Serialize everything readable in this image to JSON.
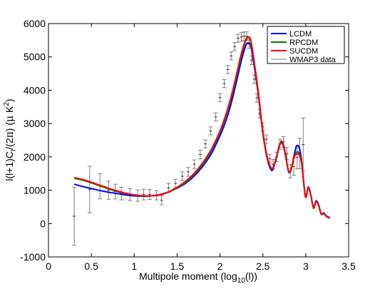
{
  "chart_data": {
    "type": "line",
    "title": "",
    "xlabel": "Multipole moment (log",
    "xlabel_sub": "10",
    "xlabel_end": "(l))",
    "ylabel_parts": {
      "a": "l(l+1)C",
      "sub": "l",
      "b": "/(2",
      "pi": "π",
      "c": ")  (",
      "mu": "μ",
      "d": " K",
      "sup": "2",
      "e": ")"
    },
    "xlim": [
      0,
      3.5
    ],
    "ylim": [
      -1000,
      6000
    ],
    "xticks": [
      0,
      0.5,
      1,
      1.5,
      2,
      2.5,
      3,
      3.5
    ],
    "xtick_labels": [
      "0",
      "0.5",
      "1",
      "1.5",
      "2",
      "2.5",
      "3",
      "3.5"
    ],
    "yticks": [
      -1000,
      0,
      1000,
      2000,
      3000,
      4000,
      5000,
      6000
    ],
    "ytick_labels": [
      "-1000",
      "0",
      "1000",
      "2000",
      "3000",
      "4000",
      "5000",
      "6000"
    ],
    "grid": false,
    "legend_position": "top-right",
    "series": [
      {
        "name": "LCDM",
        "color": "#0000ff",
        "x": [
          0.3,
          0.4,
          0.5,
          0.6,
          0.7,
          0.8,
          0.9,
          1.0,
          1.1,
          1.2,
          1.3,
          1.4,
          1.5,
          1.6,
          1.7,
          1.8,
          1.9,
          2.0,
          2.05,
          2.1,
          2.15,
          2.2,
          2.25,
          2.3,
          2.33,
          2.36,
          2.4,
          2.45,
          2.5,
          2.55,
          2.6,
          2.63,
          2.66,
          2.7,
          2.73,
          2.76,
          2.8,
          2.83,
          2.86,
          2.89,
          2.92,
          2.95,
          2.98,
          3.0,
          3.03,
          3.06,
          3.09,
          3.12,
          3.15,
          3.18,
          3.21,
          3.24,
          3.28
        ],
        "y": [
          1180,
          1110,
          1050,
          990,
          940,
          900,
          860,
          830,
          820,
          830,
          870,
          950,
          1060,
          1210,
          1430,
          1720,
          2100,
          2630,
          2950,
          3330,
          3800,
          4340,
          4900,
          5330,
          5420,
          5310,
          4700,
          3800,
          2700,
          1950,
          1600,
          1720,
          2000,
          2390,
          2390,
          2090,
          1550,
          1630,
          2000,
          2310,
          2300,
          1920,
          1150,
          800,
          1100,
          850,
          480,
          680,
          560,
          300,
          320,
          230,
          180
        ]
      },
      {
        "name": "RPCDM",
        "color": "#008000",
        "x": [
          0.3,
          0.4,
          0.5,
          0.6,
          0.7,
          0.8,
          0.9,
          1.0,
          1.1,
          1.2,
          1.3,
          1.4,
          1.5,
          1.6,
          1.7,
          1.8,
          1.9,
          2.0,
          2.05,
          2.1,
          2.15,
          2.2,
          2.25,
          2.3,
          2.33,
          2.36,
          2.4,
          2.45,
          2.5,
          2.55,
          2.6,
          2.63,
          2.66,
          2.7,
          2.73,
          2.76,
          2.8,
          2.83,
          2.86,
          2.89,
          2.92,
          2.95,
          2.98,
          3.0,
          3.03,
          3.06,
          3.09,
          3.12,
          3.15,
          3.18,
          3.21,
          3.24,
          3.28
        ],
        "y": [
          1360,
          1300,
          1220,
          1130,
          1040,
          960,
          900,
          860,
          830,
          830,
          860,
          940,
          1070,
          1240,
          1480,
          1790,
          2190,
          2740,
          3090,
          3480,
          3950,
          4500,
          5050,
          5480,
          5580,
          5450,
          4800,
          3850,
          2750,
          1990,
          1650,
          1740,
          2010,
          2400,
          2420,
          2120,
          1560,
          1630,
          1960,
          2140,
          2120,
          1860,
          1130,
          790,
          1080,
          840,
          470,
          660,
          540,
          290,
          310,
          220,
          170
        ]
      },
      {
        "name": "SUCDM",
        "color": "#ff0000",
        "x": [
          0.3,
          0.4,
          0.5,
          0.6,
          0.7,
          0.8,
          0.9,
          1.0,
          1.1,
          1.2,
          1.3,
          1.4,
          1.5,
          1.6,
          1.7,
          1.8,
          1.9,
          2.0,
          2.05,
          2.1,
          2.15,
          2.2,
          2.25,
          2.3,
          2.33,
          2.36,
          2.4,
          2.45,
          2.5,
          2.55,
          2.6,
          2.63,
          2.66,
          2.7,
          2.73,
          2.76,
          2.8,
          2.83,
          2.86,
          2.89,
          2.92,
          2.95,
          2.98,
          3.0,
          3.03,
          3.06,
          3.09,
          3.12,
          3.15,
          3.18,
          3.21,
          3.24,
          3.28
        ],
        "y": [
          1380,
          1320,
          1240,
          1150,
          1060,
          980,
          910,
          860,
          830,
          830,
          860,
          950,
          1090,
          1270,
          1510,
          1830,
          2230,
          2780,
          3130,
          3530,
          4010,
          4560,
          5110,
          5520,
          5600,
          5480,
          4840,
          3880,
          2760,
          2000,
          1660,
          1750,
          2020,
          2410,
          2440,
          2140,
          1570,
          1640,
          1970,
          2080,
          2070,
          1840,
          1120,
          780,
          1070,
          830,
          460,
          650,
          530,
          280,
          300,
          210,
          160
        ]
      }
    ],
    "data_series": {
      "name": "WMAP3 data",
      "color": "#808080",
      "x": [
        0.3,
        0.48,
        0.6,
        0.7,
        0.78,
        0.85,
        0.95,
        1.04,
        1.11,
        1.18,
        1.26,
        1.32,
        1.4,
        1.48,
        1.56,
        1.63,
        1.7,
        1.77,
        1.83,
        1.89,
        1.95,
        2.0,
        2.05,
        2.09,
        2.13,
        2.17,
        2.21,
        2.25,
        2.28,
        2.31,
        2.34,
        2.37,
        2.4,
        2.43,
        2.46,
        2.5,
        2.54,
        2.58,
        2.62,
        2.66,
        2.7,
        2.74,
        2.78,
        2.82,
        2.86,
        2.9,
        2.93,
        2.97
      ],
      "y": [
        220,
        1020,
        1120,
        1000,
        960,
        900,
        870,
        840,
        870,
        870,
        850,
        700,
        1070,
        1200,
        1420,
        1550,
        1780,
        2070,
        2390,
        2780,
        3200,
        3780,
        4200,
        4620,
        5030,
        5310,
        5560,
        5600,
        5620,
        5620,
        5390,
        4900,
        4330,
        3770,
        3300,
        2900,
        2530,
        1950,
        1780,
        2000,
        2380,
        2450,
        2100,
        1570,
        1710,
        1980,
        2100,
        2370
      ],
      "err": [
        870,
        700,
        380,
        270,
        220,
        190,
        180,
        170,
        160,
        150,
        140,
        140,
        140,
        130,
        130,
        130,
        130,
        130,
        120,
        120,
        120,
        120,
        120,
        120,
        120,
        120,
        120,
        130,
        130,
        130,
        130,
        130,
        130,
        130,
        130,
        130,
        130,
        130,
        140,
        140,
        150,
        160,
        180,
        200,
        260,
        340,
        460,
        800
      ]
    }
  }
}
